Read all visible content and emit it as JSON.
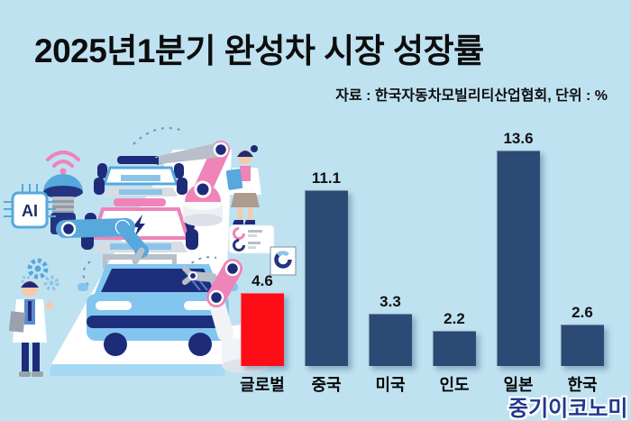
{
  "title": "2025년1분기 완성차 시장 성장률",
  "source_note": "자료 : 한국자동차모빌리티산업협회, 단위 : %",
  "watermark": "중기이코노미",
  "illustration": {
    "ai_label": "AI",
    "icons": [
      "wifi-icon",
      "ai-chip-icon",
      "gear-icon",
      "ev-bolt-icon",
      "robot-arm-icon",
      "conveyor-belt",
      "assembled-car",
      "engineer-male",
      "engineer-female",
      "stat-card",
      "gauge-box"
    ]
  },
  "colors": {
    "background": "#bfe2f1",
    "bar_default": "#2b4a74",
    "bar_highlight": "#fd0d15",
    "label_text": "#0d0d0d",
    "watermark_text": "#21398c",
    "illustration_pink": "#ee84b8",
    "illustration_blue": "#57a8dc",
    "illustration_navy": "#1d2b78"
  },
  "chart_data": {
    "type": "bar",
    "title": "2025년1분기 완성차 시장 성장률",
    "source": "자료 : 한국자동차모빌리티산업협회, 단위 : %",
    "unit": "%",
    "categories": [
      "글로벌",
      "중국",
      "미국",
      "인도",
      "일본",
      "한국"
    ],
    "values": [
      4.6,
      11.1,
      3.3,
      2.2,
      13.6,
      2.6
    ],
    "bar_colors": [
      "#fd0d15",
      "#2b4a74",
      "#2b4a74",
      "#2b4a74",
      "#2b4a74",
      "#2b4a74"
    ],
    "ylim": [
      0,
      15
    ],
    "grid": false,
    "axis_lines": false,
    "value_labels": true,
    "legend": "none"
  }
}
